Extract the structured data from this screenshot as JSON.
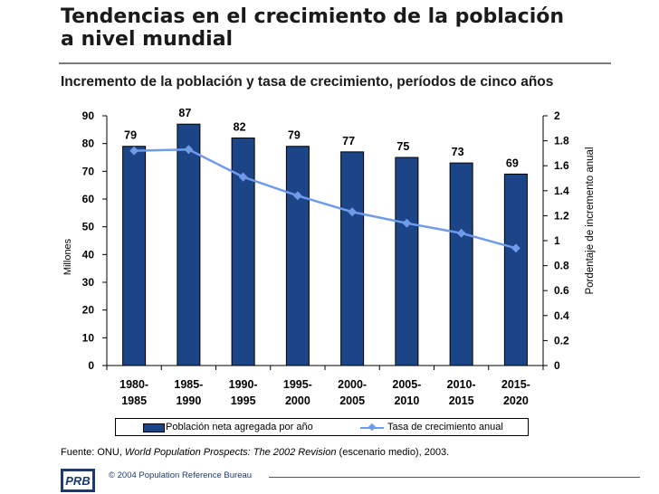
{
  "header": {
    "title_line1": "Tendencias en el crecimiento de la población",
    "title_line2": "a nivel mundial",
    "subtitle": "Incremento de la población y tasa de crecimiento, períodos de cinco años"
  },
  "chart_data": {
    "type": "bar",
    "categories": [
      [
        "1980-",
        "1985"
      ],
      [
        "1985-",
        "1990"
      ],
      [
        "1990-",
        "1995"
      ],
      [
        "1995-",
        "2000"
      ],
      [
        "2000-",
        "2005"
      ],
      [
        "2005-",
        "2010"
      ],
      [
        "2010-",
        "2015"
      ],
      [
        "2015-",
        "2020"
      ]
    ],
    "series": [
      {
        "name": "Población neta agregada por año",
        "type": "bar",
        "axis": "left",
        "values": [
          79,
          87,
          82,
          79,
          77,
          75,
          73,
          69
        ],
        "color": "#1c4587"
      },
      {
        "name": "Tasa de crecimiento anual",
        "type": "line",
        "axis": "right",
        "values": [
          1.72,
          1.73,
          1.51,
          1.36,
          1.23,
          1.14,
          1.06,
          0.94
        ],
        "color": "#6f9bea"
      }
    ],
    "ylabel": "Millones",
    "y2label": "Pordentaje de incremento anual",
    "ylim": [
      0,
      90
    ],
    "y_ticks": [
      "0",
      "10",
      "20",
      "30",
      "40",
      "50",
      "60",
      "70",
      "80",
      "90"
    ],
    "y2lim": [
      0,
      2
    ],
    "y2_ticks": [
      "0",
      "0.2",
      "0.4",
      "0.6",
      "0.8",
      "1",
      "1.2",
      "1.4",
      "1.6",
      "1.8",
      "2"
    ],
    "legend_position": "bottom",
    "grid": false
  },
  "footer": {
    "source_prefix": "Fuente: ONU, ",
    "source_title": "World Population Prospects: The 2002 Revision",
    "source_suffix": " (escenario medio), 2003.",
    "logo_text": "PRB",
    "copyright": "© 2004 Population Reference Bureau"
  }
}
